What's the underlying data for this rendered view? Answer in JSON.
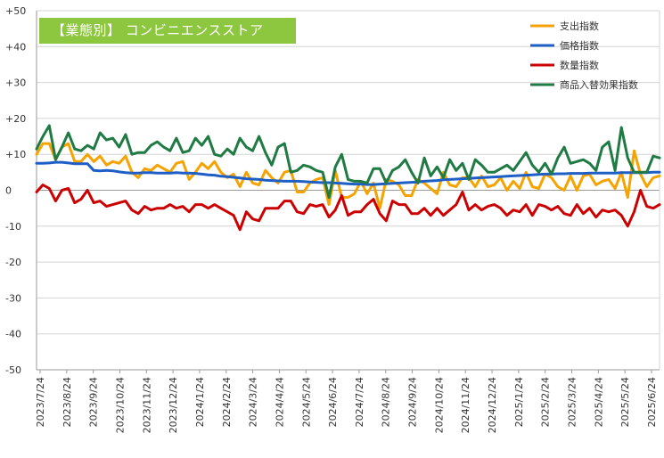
{
  "chart_data": {
    "type": "line",
    "title": "【業態別】 コンビニエンスストア",
    "xlabel": "",
    "ylabel": "",
    "ylim": [
      -50,
      50
    ],
    "yticks": [
      "+50",
      "+40",
      "+30",
      "+20",
      "+10",
      "0",
      "-10",
      "-20",
      "-30",
      "-40",
      "-50"
    ],
    "yticks_values": [
      50,
      40,
      30,
      20,
      10,
      0,
      -10,
      -20,
      -30,
      -40,
      -50
    ],
    "grid": true,
    "legend_position": "top-right",
    "xtick_labels": [
      "2023/7/24",
      "2023/8/24",
      "2023/9/24",
      "2023/10/24",
      "2023/11/24",
      "2023/12/24",
      "2024/1/24",
      "2024/2/24",
      "2024/3/24",
      "2024/4/24",
      "2024/5/24",
      "2024/6/24",
      "2024/7/24",
      "2024/8/24",
      "2024/9/24",
      "2024/10/24",
      "2024/11/24",
      "2024/12/24",
      "2025/1/24",
      "2025/2/24",
      "2025/3/24",
      "2025/4/24",
      "2025/5/24",
      "2025/6/24"
    ],
    "series": [
      {
        "name": "支出指数",
        "color": "#f5a300",
        "values": [
          10.0,
          13.0,
          13.0,
          8.5,
          12.0,
          13.0,
          8.0,
          8.0,
          10.0,
          8.0,
          9.5,
          7.0,
          8.0,
          7.5,
          9.5,
          5.0,
          3.5,
          6.0,
          5.5,
          7.0,
          6.0,
          5.0,
          7.5,
          8.0,
          3.0,
          5.0,
          7.5,
          6.0,
          8.0,
          5.0,
          3.5,
          4.5,
          1.0,
          5.0,
          2.0,
          1.5,
          5.5,
          3.5,
          2.0,
          5.0,
          5.5,
          -0.5,
          -0.5,
          2.0,
          3.0,
          3.5,
          -4.0,
          5.5,
          -2.0,
          -2.0,
          -1.0,
          2.5,
          -1.0,
          2.0,
          -5.0,
          3.0,
          2.5,
          1.5,
          -1.5,
          -1.5,
          3.0,
          2.0,
          0.5,
          -1.0,
          5.0,
          1.5,
          1.0,
          3.5,
          3.5,
          1.0,
          4.0,
          1.0,
          1.5,
          3.5,
          0.0,
          2.5,
          0.5,
          5.0,
          1.0,
          0.5,
          4.5,
          3.5,
          1.0,
          0.0,
          4.0,
          0.0,
          4.0,
          4.5,
          1.5,
          2.5,
          3.0,
          0.5,
          5.0,
          -2.0,
          11.0,
          4.5,
          1.0,
          3.5,
          4.0
        ]
      },
      {
        "name": "価格指数",
        "color": "#1e5fc7",
        "values": [
          7.5,
          7.5,
          7.6,
          7.8,
          7.8,
          7.6,
          7.4,
          7.4,
          7.4,
          5.5,
          5.4,
          5.5,
          5.4,
          5.1,
          4.9,
          4.8,
          4.8,
          4.9,
          4.9,
          4.8,
          4.8,
          4.8,
          4.9,
          4.8,
          4.8,
          4.7,
          4.5,
          4.3,
          4.2,
          3.9,
          3.8,
          3.6,
          3.4,
          3.2,
          3.1,
          3.0,
          2.8,
          2.7,
          2.6,
          2.5,
          2.5,
          2.5,
          2.4,
          2.3,
          2.2,
          2.1,
          2.1,
          2.0,
          1.9,
          1.8,
          1.7,
          1.7,
          1.6,
          1.6,
          1.7,
          1.8,
          1.9,
          2.0,
          2.1,
          2.2,
          2.3,
          2.5,
          2.6,
          2.7,
          2.9,
          3.0,
          3.1,
          3.2,
          3.3,
          3.4,
          3.5,
          3.6,
          3.7,
          3.8,
          3.9,
          4.0,
          4.1,
          4.2,
          4.3,
          4.4,
          4.5,
          4.5,
          4.6,
          4.6,
          4.7,
          4.7,
          4.7,
          4.8,
          4.8,
          4.8,
          4.8,
          4.8,
          4.9,
          4.9,
          4.9,
          4.9,
          4.9,
          5.0,
          5.0
        ]
      },
      {
        "name": "数量指数",
        "color": "#cc0000",
        "values": [
          -0.5,
          1.5,
          0.5,
          -3.0,
          0.0,
          0.5,
          -3.5,
          -2.5,
          0.0,
          -3.5,
          -3.0,
          -4.5,
          -4.0,
          -3.5,
          -3.0,
          -5.5,
          -6.5,
          -4.5,
          -5.5,
          -5.0,
          -5.0,
          -4.0,
          -5.0,
          -4.5,
          -6.0,
          -4.0,
          -4.0,
          -5.0,
          -4.0,
          -5.0,
          -6.0,
          -7.0,
          -11.0,
          -6.0,
          -8.0,
          -8.5,
          -5.0,
          -5.0,
          -5.0,
          -3.0,
          -3.0,
          -6.0,
          -6.5,
          -4.0,
          -4.5,
          -4.0,
          -7.5,
          -5.5,
          -1.5,
          -7.0,
          -6.0,
          -6.0,
          -4.0,
          -2.5,
          -6.5,
          -8.5,
          -3.0,
          -4.0,
          -4.0,
          -6.5,
          -6.5,
          -5.0,
          -7.0,
          -5.0,
          -7.0,
          -5.5,
          -4.0,
          -0.5,
          -5.5,
          -4.0,
          -5.5,
          -4.5,
          -4.0,
          -5.0,
          -7.0,
          -5.5,
          -6.0,
          -4.0,
          -7.0,
          -4.0,
          -4.5,
          -5.5,
          -4.5,
          -6.5,
          -7.0,
          -4.0,
          -6.5,
          -5.0,
          -7.5,
          -5.5,
          -6.0,
          -5.5,
          -7.0,
          -10.0,
          -6.0,
          0.0,
          -4.5,
          -5.0,
          -4.0
        ]
      },
      {
        "name": "商品入替効果指数",
        "color": "#1f7a44",
        "values": [
          11.5,
          15.0,
          18.0,
          8.5,
          12.0,
          16.0,
          11.5,
          11.0,
          12.5,
          11.5,
          16.0,
          14.0,
          14.5,
          12.0,
          15.5,
          10.0,
          10.5,
          10.5,
          12.5,
          13.5,
          12.0,
          11.0,
          14.5,
          10.5,
          11.0,
          14.5,
          12.5,
          15.0,
          10.0,
          9.5,
          11.5,
          10.0,
          14.5,
          12.0,
          11.0,
          15.0,
          10.5,
          7.0,
          12.0,
          13.0,
          5.0,
          5.5,
          7.0,
          6.5,
          5.5,
          5.0,
          -2.0,
          6.5,
          10.0,
          3.0,
          2.5,
          2.5,
          2.0,
          6.0,
          6.0,
          2.0,
          5.5,
          6.5,
          8.5,
          5.0,
          2.0,
          9.0,
          4.0,
          6.5,
          3.5,
          8.5,
          5.5,
          7.5,
          3.0,
          8.5,
          7.0,
          5.0,
          5.0,
          6.0,
          7.0,
          5.5,
          8.0,
          10.5,
          7.0,
          5.0,
          7.5,
          4.5,
          9.0,
          12.0,
          7.5,
          8.0,
          8.5,
          7.5,
          5.5,
          12.0,
          13.5,
          5.5,
          17.5,
          9.0,
          5.0,
          5.0,
          5.0,
          9.5,
          9.0
        ]
      }
    ]
  }
}
